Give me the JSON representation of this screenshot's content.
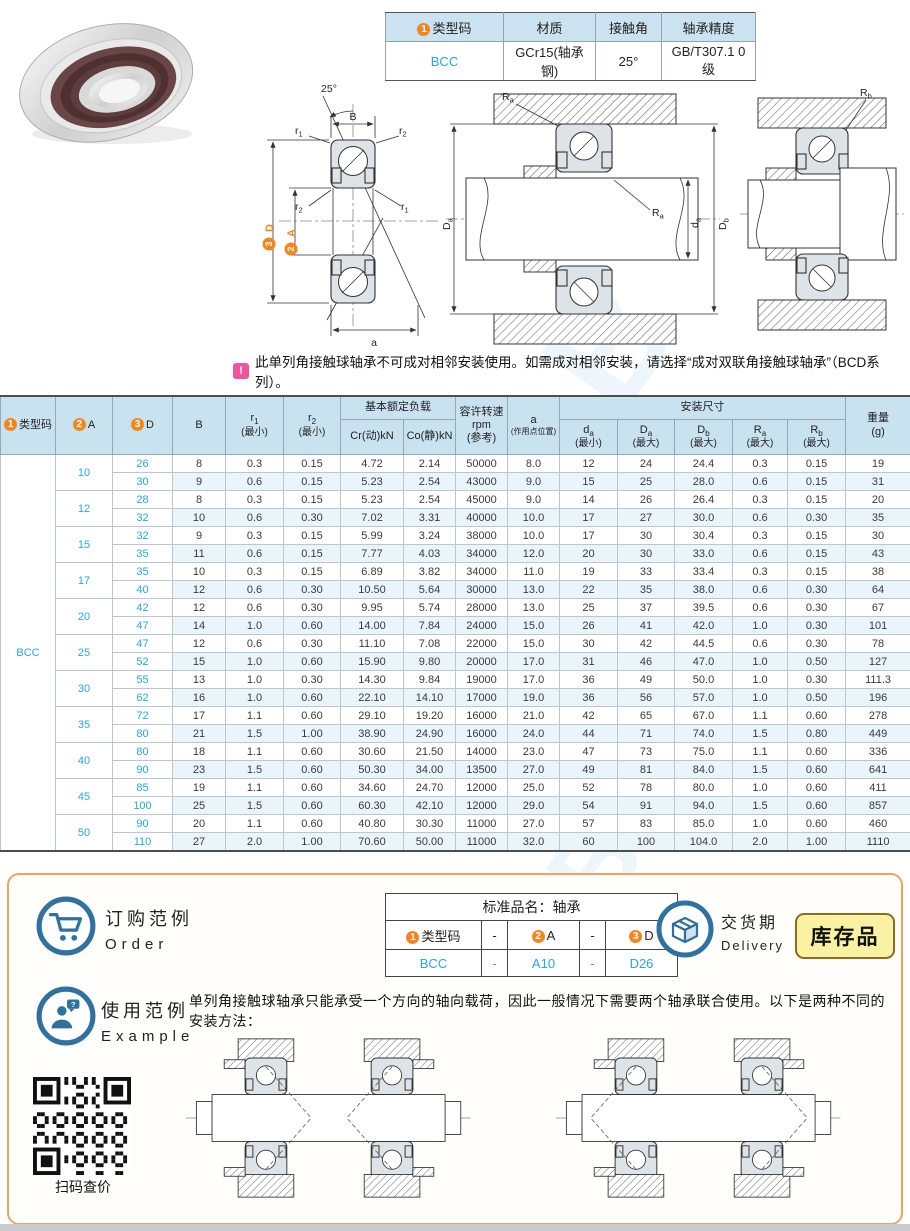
{
  "watermark": "SAML-B",
  "colors": {
    "accent_blue": "#2aa6de",
    "orange_marker": "#f5861f",
    "header_bg": "#c9e2f0",
    "row_alt_bg": "#e9f4fb",
    "icon_blue": "#31719f",
    "badge_bg": "#fbf1a2",
    "frame_orange": "#eea45c",
    "note_pink": "#f0559b"
  },
  "icons": {
    "note": "alert-icon",
    "order": "cart-icon",
    "delivery": "box-icon",
    "example": "person-icon",
    "qr": "qr-code"
  },
  "spec_table": {
    "headers": [
      {
        "marker": "1",
        "label": "类型码"
      },
      {
        "label": "材质"
      },
      {
        "label": "接触角"
      },
      {
        "label": "轴承精度"
      }
    ],
    "values": {
      "type_code": "BCC",
      "material": "GCr15(轴承钢)",
      "contact_angle": "25°",
      "precision": "GB/T307.1 0级"
    }
  },
  "note": {
    "icon": "!",
    "text": "此单列角接触球轴承不可成对相邻安装使用。如需成对相邻安装，请选择“成对双联角接触球轴承”（BCD系列）。"
  },
  "drawings": {
    "front": {
      "angle": "25°",
      "b": "B",
      "a": "a",
      "r1": {
        "base": "r",
        "sub": "1"
      },
      "r2": {
        "base": "r",
        "sub": "2"
      },
      "od": {
        "marker": "3",
        "label": "D"
      },
      "bore": {
        "marker": "2",
        "label": "A"
      }
    },
    "mount": {
      "ra": {
        "base": "R",
        "sub": "a"
      },
      "Da": {
        "base": "D",
        "sub": "a"
      },
      "da": {
        "base": "d",
        "sub": "a"
      },
      "Db": {
        "base": "D",
        "sub": "b"
      }
    },
    "shoulder": {
      "rb": {
        "base": "R",
        "sub": "b"
      }
    }
  },
  "main_table": {
    "type_code_value": "BCC",
    "headers": {
      "type_code": {
        "marker": "1",
        "label": "类型码"
      },
      "a_col": {
        "marker": "2",
        "label": "A"
      },
      "d_col": {
        "marker": "3",
        "label": "D"
      },
      "b_col": "B",
      "r1": {
        "base": "r",
        "sub": "1",
        "note": "(最小)"
      },
      "r2": {
        "base": "r",
        "sub": "2",
        "note": "(最小)"
      },
      "load_group": "基本额定负载",
      "cr": "Cr(动)kN",
      "co": "Co(静)kN",
      "speed": {
        "l1": "容许转速",
        "l2": "rpm",
        "l3": "(参考)"
      },
      "a_pos": {
        "l1": "a",
        "l2": "(作用点位置)"
      },
      "mount_group": "安装尺寸",
      "da": {
        "base": "d",
        "sub": "a",
        "note": "(最小)"
      },
      "Da": {
        "base": "D",
        "sub": "a",
        "note": "(最大)"
      },
      "Db": {
        "base": "D",
        "sub": "b",
        "note": "(最大)"
      },
      "Ra": {
        "base": "R",
        "sub": "a",
        "note": "(最大)"
      },
      "Rb": {
        "base": "R",
        "sub": "b",
        "note": "(最大)"
      },
      "weight": {
        "l1": "重量",
        "l2": "(g)"
      }
    },
    "groups": [
      {
        "a": "10",
        "rows": [
          [
            "26",
            "8",
            "0.3",
            "0.15",
            "4.72",
            "2.14",
            "50000",
            "8.0",
            "12",
            "24",
            "24.4",
            "0.3",
            "0.15",
            "19"
          ],
          [
            "30",
            "9",
            "0.6",
            "0.15",
            "5.23",
            "2.54",
            "43000",
            "9.0",
            "15",
            "25",
            "28.0",
            "0.6",
            "0.15",
            "31"
          ]
        ]
      },
      {
        "a": "12",
        "rows": [
          [
            "28",
            "8",
            "0.3",
            "0.15",
            "5.23",
            "2.54",
            "45000",
            "9.0",
            "14",
            "26",
            "26.4",
            "0.3",
            "0.15",
            "20"
          ],
          [
            "32",
            "10",
            "0.6",
            "0.30",
            "7.02",
            "3.31",
            "40000",
            "10.0",
            "17",
            "27",
            "30.0",
            "0.6",
            "0.30",
            "35"
          ]
        ]
      },
      {
        "a": "15",
        "rows": [
          [
            "32",
            "9",
            "0.3",
            "0.15",
            "5.99",
            "3.24",
            "38000",
            "10.0",
            "17",
            "30",
            "30.4",
            "0.3",
            "0.15",
            "30"
          ],
          [
            "35",
            "11",
            "0.6",
            "0.15",
            "7.77",
            "4.03",
            "34000",
            "12.0",
            "20",
            "30",
            "33.0",
            "0.6",
            "0.15",
            "43"
          ]
        ]
      },
      {
        "a": "17",
        "rows": [
          [
            "35",
            "10",
            "0.3",
            "0.15",
            "6.89",
            "3.82",
            "34000",
            "11.0",
            "19",
            "33",
            "33.4",
            "0.3",
            "0.15",
            "38"
          ],
          [
            "40",
            "12",
            "0.6",
            "0.30",
            "10.50",
            "5.64",
            "30000",
            "13.0",
            "22",
            "35",
            "38.0",
            "0.6",
            "0.30",
            "64"
          ]
        ]
      },
      {
        "a": "20",
        "rows": [
          [
            "42",
            "12",
            "0.6",
            "0.30",
            "9.95",
            "5.74",
            "28000",
            "13.0",
            "25",
            "37",
            "39.5",
            "0.6",
            "0.30",
            "67"
          ],
          [
            "47",
            "14",
            "1.0",
            "0.60",
            "14.00",
            "7.84",
            "24000",
            "15.0",
            "26",
            "41",
            "42.0",
            "1.0",
            "0.30",
            "101"
          ]
        ]
      },
      {
        "a": "25",
        "rows": [
          [
            "47",
            "12",
            "0.6",
            "0.30",
            "11.10",
            "7.08",
            "22000",
            "15.0",
            "30",
            "42",
            "44.5",
            "0.6",
            "0.30",
            "78"
          ],
          [
            "52",
            "15",
            "1.0",
            "0.60",
            "15.90",
            "9.80",
            "20000",
            "17.0",
            "31",
            "46",
            "47.0",
            "1.0",
            "0.50",
            "127"
          ]
        ]
      },
      {
        "a": "30",
        "rows": [
          [
            "55",
            "13",
            "1.0",
            "0.30",
            "14.30",
            "9.84",
            "19000",
            "17.0",
            "36",
            "49",
            "50.0",
            "1.0",
            "0.30",
            "111.3"
          ],
          [
            "62",
            "16",
            "1.0",
            "0.60",
            "22.10",
            "14.10",
            "17000",
            "19.0",
            "36",
            "56",
            "57.0",
            "1.0",
            "0.50",
            "196"
          ]
        ]
      },
      {
        "a": "35",
        "rows": [
          [
            "72",
            "17",
            "1.1",
            "0.60",
            "29.10",
            "19.20",
            "16000",
            "21.0",
            "42",
            "65",
            "67.0",
            "1.1",
            "0.60",
            "278"
          ],
          [
            "80",
            "21",
            "1.5",
            "1.00",
            "38.90",
            "24.90",
            "16000",
            "24.0",
            "44",
            "71",
            "74.0",
            "1.5",
            "0.80",
            "449"
          ]
        ]
      },
      {
        "a": "40",
        "rows": [
          [
            "80",
            "18",
            "1.1",
            "0.60",
            "30.60",
            "21.50",
            "14000",
            "23.0",
            "47",
            "73",
            "75.0",
            "1.1",
            "0.60",
            "336"
          ],
          [
            "90",
            "23",
            "1.5",
            "0.60",
            "50.30",
            "34.00",
            "13500",
            "27.0",
            "49",
            "81",
            "84.0",
            "1.5",
            "0.60",
            "641"
          ]
        ]
      },
      {
        "a": "45",
        "rows": [
          [
            "85",
            "19",
            "1.1",
            "0.60",
            "34.60",
            "24.70",
            "12000",
            "25.0",
            "52",
            "78",
            "80.0",
            "1.0",
            "0.60",
            "411"
          ],
          [
            "100",
            "25",
            "1.5",
            "0.60",
            "60.30",
            "42.10",
            "12000",
            "29.0",
            "54",
            "91",
            "94.0",
            "1.5",
            "0.60",
            "857"
          ]
        ]
      },
      {
        "a": "50",
        "rows": [
          [
            "90",
            "20",
            "1.1",
            "0.60",
            "40.80",
            "30.30",
            "11000",
            "27.0",
            "57",
            "83",
            "85.0",
            "1.0",
            "0.60",
            "460"
          ],
          [
            "110",
            "27",
            "2.0",
            "1.00",
            "70.60",
            "50.00",
            "11000",
            "32.0",
            "60",
            "100",
            "104.0",
            "2.0",
            "1.00",
            "1110"
          ]
        ]
      }
    ]
  },
  "footer": {
    "order": {
      "title_cn": "订购范例",
      "title_en": "Order",
      "table_title": "标准品名：轴承",
      "cols": [
        {
          "marker": "1",
          "label": "类型码"
        },
        {
          "label": "-"
        },
        {
          "marker": "2",
          "label": "A"
        },
        {
          "label": "-"
        },
        {
          "marker": "3",
          "label": "D"
        }
      ],
      "values": [
        "BCC",
        "-",
        "A10",
        "-",
        "D26"
      ]
    },
    "delivery": {
      "title_cn": "交货期",
      "title_en": "Delivery",
      "badge": "库存品"
    },
    "example": {
      "title_cn": "使用范例",
      "title_en": "Example",
      "text": "单列角接触球轴承只能承受一个方向的轴向载荷，因此一般情况下需要两个轴承联合使用。以下是两种不同的安装方法："
    },
    "qr_label": "扫码查价"
  }
}
